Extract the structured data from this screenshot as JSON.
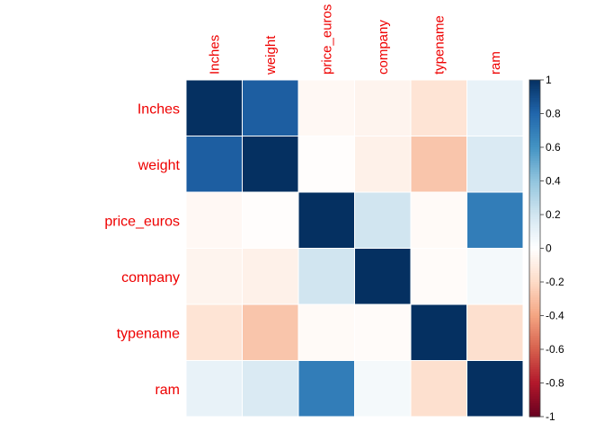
{
  "chart_data": {
    "type": "heatmap",
    "title": "",
    "row_labels": [
      "Inches",
      "weight",
      "price_euros",
      "company",
      "typename",
      "ram"
    ],
    "col_labels": [
      "Inches",
      "weight",
      "price_euros",
      "company",
      "typename",
      "ram"
    ],
    "matrix": [
      [
        1.0,
        0.83,
        -0.04,
        -0.06,
        -0.15,
        0.1
      ],
      [
        0.83,
        1.0,
        -0.01,
        -0.08,
        -0.28,
        0.16
      ],
      [
        -0.04,
        -0.01,
        1.0,
        0.2,
        -0.03,
        0.7
      ],
      [
        -0.06,
        -0.08,
        0.2,
        1.0,
        -0.02,
        0.05
      ],
      [
        -0.15,
        -0.28,
        -0.03,
        -0.02,
        1.0,
        -0.17
      ],
      [
        0.1,
        0.16,
        0.7,
        0.05,
        -0.17,
        1.0
      ]
    ],
    "colorbar": {
      "range": [
        -1,
        1
      ],
      "ticks": [
        "-1",
        "-0.8",
        "-0.6",
        "-0.4",
        "-0.2",
        "0",
        "0.2",
        "0.4",
        "0.6",
        "0.8",
        "1"
      ]
    },
    "colors": {
      "label_color": "#ee0000",
      "negative_end": "#67001f",
      "positive_end": "#053061",
      "grid_line": "#ffffff"
    }
  }
}
